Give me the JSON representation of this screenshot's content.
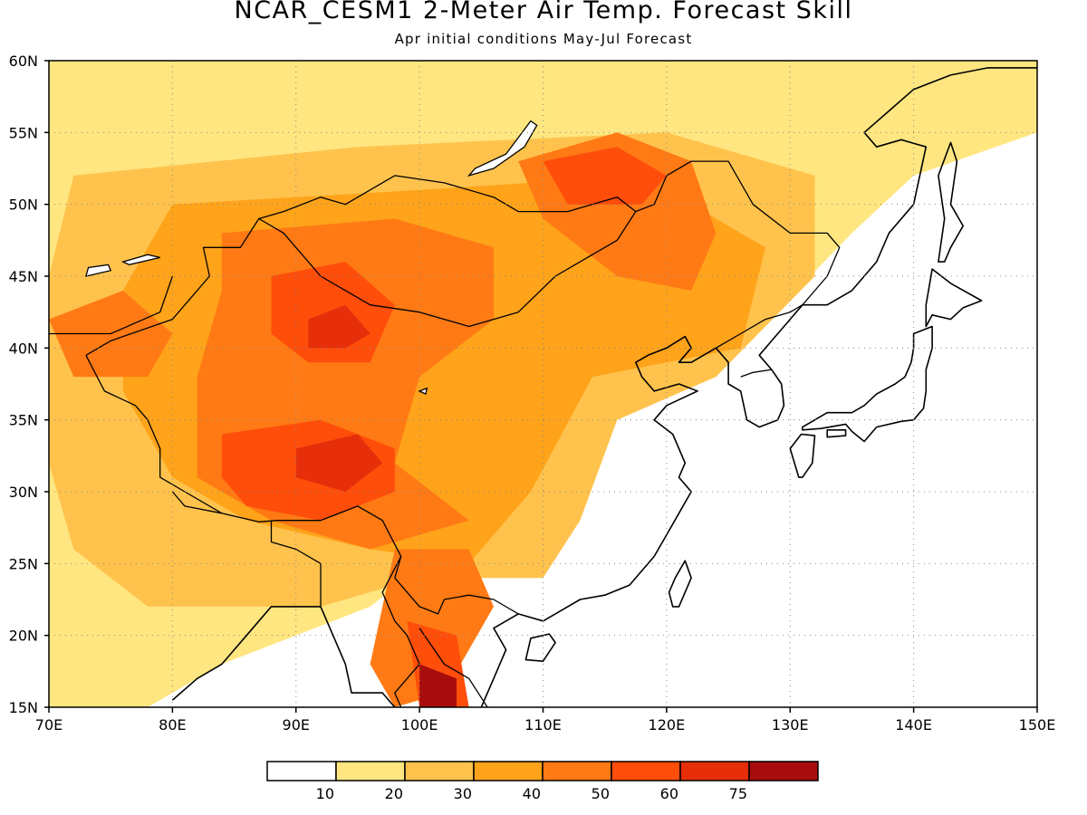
{
  "title": "NCAR_CESM1 2-Meter Air Temp. Forecast Skill",
  "subtitle": "Apr initial conditions  May-Jul Forecast",
  "map": {
    "lon_range": [
      70,
      150
    ],
    "lat_range": [
      15,
      60
    ],
    "lon_ticks": [
      {
        "value": 70,
        "label": "70E"
      },
      {
        "value": 80,
        "label": "80E"
      },
      {
        "value": 90,
        "label": "90E"
      },
      {
        "value": 100,
        "label": "100E"
      },
      {
        "value": 110,
        "label": "110E"
      },
      {
        "value": 120,
        "label": "120E"
      },
      {
        "value": 130,
        "label": "130E"
      },
      {
        "value": 140,
        "label": "140E"
      },
      {
        "value": 150,
        "label": "150E"
      }
    ],
    "lat_ticks": [
      {
        "value": 15,
        "label": "15N"
      },
      {
        "value": 20,
        "label": "20N"
      },
      {
        "value": 25,
        "label": "25N"
      },
      {
        "value": 30,
        "label": "30N"
      },
      {
        "value": 35,
        "label": "35N"
      },
      {
        "value": 40,
        "label": "40N"
      },
      {
        "value": 45,
        "label": "45N"
      },
      {
        "value": 50,
        "label": "50N"
      },
      {
        "value": 55,
        "label": "55N"
      },
      {
        "value": 60,
        "label": "60N"
      }
    ],
    "gridlines": "dotted"
  },
  "colorbar": {
    "colors": [
      "#ffffff",
      "#ffe680",
      "#ffc34d",
      "#ffa31a",
      "#ff7a14",
      "#ff4d0a",
      "#e62e0a",
      "#a80d0d"
    ],
    "labels": [
      "10",
      "20",
      "30",
      "40",
      "50",
      "60",
      "75"
    ]
  },
  "skill_regions": [
    {
      "level": 1,
      "points": [
        [
          70,
          60
        ],
        [
          150,
          60
        ],
        [
          150,
          55
        ],
        [
          140,
          52
        ],
        [
          135,
          48
        ],
        [
          126,
          40
        ],
        [
          118,
          36
        ],
        [
          112,
          35
        ],
        [
          110,
          33
        ],
        [
          102,
          26
        ],
        [
          96,
          22
        ],
        [
          84,
          18
        ],
        [
          76,
          14
        ],
        [
          70,
          15
        ]
      ]
    },
    {
      "level": 2,
      "points": [
        [
          72,
          52
        ],
        [
          95,
          54
        ],
        [
          120,
          55
        ],
        [
          132,
          52
        ],
        [
          132,
          45
        ],
        [
          124,
          38
        ],
        [
          116,
          35
        ],
        [
          113,
          28
        ],
        [
          110,
          24
        ],
        [
          100,
          24
        ],
        [
          92,
          22
        ],
        [
          86,
          22
        ],
        [
          78,
          22
        ],
        [
          72,
          26
        ],
        [
          70,
          32
        ],
        [
          70,
          45
        ]
      ]
    },
    {
      "level": 3,
      "points": [
        [
          80,
          50
        ],
        [
          100,
          51
        ],
        [
          118,
          52
        ],
        [
          128,
          47
        ],
        [
          126,
          40
        ],
        [
          114,
          38
        ],
        [
          109,
          30
        ],
        [
          104,
          25
        ],
        [
          96,
          26
        ],
        [
          86,
          28
        ],
        [
          80,
          31
        ],
        [
          76,
          37
        ],
        [
          76,
          44
        ]
      ]
    },
    {
      "level": 4,
      "points": [
        [
          84,
          48
        ],
        [
          98,
          49
        ],
        [
          106,
          47
        ],
        [
          106,
          42
        ],
        [
          100,
          38
        ],
        [
          98,
          32
        ],
        [
          104,
          28
        ],
        [
          96,
          26
        ],
        [
          88,
          28
        ],
        [
          82,
          31
        ],
        [
          82,
          38
        ],
        [
          84,
          44
        ]
      ]
    },
    {
      "level": 4,
      "points": [
        [
          108,
          53
        ],
        [
          116,
          55
        ],
        [
          122,
          53
        ],
        [
          124,
          48
        ],
        [
          122,
          44
        ],
        [
          116,
          45
        ],
        [
          110,
          49
        ]
      ]
    },
    {
      "level": 4,
      "points": [
        [
          70,
          42
        ],
        [
          76,
          44
        ],
        [
          80,
          41
        ],
        [
          78,
          38
        ],
        [
          72,
          38
        ]
      ]
    },
    {
      "level": 4,
      "points": [
        [
          98,
          26
        ],
        [
          104,
          26
        ],
        [
          106,
          22
        ],
        [
          102,
          16
        ],
        [
          98,
          15
        ],
        [
          96,
          18
        ]
      ]
    },
    {
      "level": 5,
      "points": [
        [
          88,
          45
        ],
        [
          94,
          46
        ],
        [
          98,
          43
        ],
        [
          96,
          39
        ],
        [
          91,
          39
        ],
        [
          88,
          41
        ]
      ]
    },
    {
      "level": 5,
      "points": [
        [
          84,
          34
        ],
        [
          92,
          35
        ],
        [
          98,
          33
        ],
        [
          98,
          30
        ],
        [
          92,
          28
        ],
        [
          86,
          29
        ],
        [
          84,
          31
        ]
      ]
    },
    {
      "level": 5,
      "points": [
        [
          110,
          53
        ],
        [
          116,
          54
        ],
        [
          120,
          52
        ],
        [
          118,
          50
        ],
        [
          112,
          50
        ]
      ]
    },
    {
      "level": 5,
      "points": [
        [
          99,
          21
        ],
        [
          103,
          20
        ],
        [
          104,
          15
        ],
        [
          100,
          15
        ]
      ]
    },
    {
      "level": 6,
      "points": [
        [
          91,
          42
        ],
        [
          94,
          43
        ],
        [
          96,
          41
        ],
        [
          94,
          40
        ],
        [
          91,
          40
        ]
      ]
    },
    {
      "level": 6,
      "points": [
        [
          90,
          33
        ],
        [
          95,
          34
        ],
        [
          97,
          32
        ],
        [
          94,
          30
        ],
        [
          90,
          31
        ]
      ]
    },
    {
      "level": 7,
      "points": [
        [
          100,
          18
        ],
        [
          103,
          17
        ],
        [
          103,
          15
        ],
        [
          100,
          15
        ]
      ]
    }
  ],
  "coastlines": [
    [
      [
        92,
        22
      ],
      [
        90,
        22
      ],
      [
        88,
        22
      ],
      [
        87,
        21
      ],
      [
        86,
        20
      ],
      [
        84,
        18
      ],
      [
        82,
        17
      ],
      [
        80,
        15.5
      ]
    ],
    [
      [
        92,
        22
      ],
      [
        93,
        20
      ],
      [
        94,
        18
      ],
      [
        94.5,
        16
      ],
      [
        97,
        16
      ],
      [
        98,
        15
      ]
    ],
    [
      [
        100,
        15
      ],
      [
        100,
        13.5
      ]
    ],
    [
      [
        105,
        15
      ],
      [
        106,
        17
      ],
      [
        107,
        19
      ],
      [
        106,
        20.5
      ],
      [
        108,
        21.5
      ],
      [
        110,
        21
      ],
      [
        111,
        21.5
      ],
      [
        113,
        22.5
      ],
      [
        115,
        22.8
      ],
      [
        117,
        23.5
      ],
      [
        119,
        25.5
      ],
      [
        120,
        27
      ],
      [
        121,
        28.5
      ],
      [
        122,
        30
      ],
      [
        121,
        31
      ],
      [
        121.5,
        32
      ],
      [
        120.5,
        34
      ],
      [
        119,
        35
      ],
      [
        120,
        36
      ],
      [
        122.5,
        37
      ],
      [
        121,
        37.5
      ],
      [
        119,
        37
      ],
      [
        118,
        38
      ],
      [
        117.5,
        39
      ],
      [
        118.5,
        39.5
      ],
      [
        120,
        40
      ],
      [
        121.5,
        40.8
      ],
      [
        122,
        40
      ],
      [
        121,
        39
      ],
      [
        122,
        39
      ],
      [
        124,
        40
      ],
      [
        125,
        39
      ],
      [
        125,
        37.5
      ],
      [
        126,
        37
      ],
      [
        126.5,
        35
      ],
      [
        127.5,
        34.5
      ],
      [
        129,
        35
      ],
      [
        129.5,
        36
      ],
      [
        129.3,
        37.5
      ],
      [
        128.5,
        38.5
      ],
      [
        127.5,
        39.5
      ],
      [
        128.5,
        40.5
      ],
      [
        130,
        42
      ],
      [
        131,
        43
      ],
      [
        133,
        43
      ],
      [
        135,
        44
      ],
      [
        137,
        46
      ],
      [
        138,
        48
      ],
      [
        140,
        50
      ],
      [
        140.5,
        52
      ],
      [
        141,
        54
      ],
      [
        139,
        54.5
      ],
      [
        137,
        54
      ],
      [
        136,
        55
      ],
      [
        138,
        56.5
      ],
      [
        140,
        58
      ],
      [
        143,
        59
      ],
      [
        146,
        59.5
      ],
      [
        150,
        59.5
      ]
    ]
  ],
  "islands": [
    [
      [
        120.5,
        22
      ],
      [
        121,
        22
      ],
      [
        122,
        24
      ],
      [
        121.5,
        25.2
      ],
      [
        120.7,
        24
      ],
      [
        120.2,
        23
      ]
    ],
    [
      [
        108.6,
        18.3
      ],
      [
        110,
        18.2
      ],
      [
        111,
        19.5
      ],
      [
        110.5,
        20.1
      ],
      [
        109,
        19.8
      ]
    ],
    [
      [
        141,
        41.5
      ],
      [
        141,
        43
      ],
      [
        141.5,
        45.5
      ],
      [
        143,
        44.5
      ],
      [
        145.5,
        43.3
      ],
      [
        144,
        42.8
      ],
      [
        143,
        42
      ],
      [
        141.5,
        42.3
      ]
    ],
    [
      [
        130.7,
        31
      ],
      [
        130,
        33
      ],
      [
        130.9,
        34
      ],
      [
        132,
        33.9
      ],
      [
        131.8,
        32
      ],
      [
        131,
        31
      ]
    ],
    [
      [
        133,
        33.8
      ],
      [
        134.5,
        33.9
      ],
      [
        134.5,
        34.3
      ],
      [
        133,
        34.3
      ]
    ],
    [
      [
        131,
        34.3
      ],
      [
        132.5,
        34.4
      ],
      [
        134.5,
        34.7
      ],
      [
        135,
        34.2
      ],
      [
        136,
        33.5
      ],
      [
        137,
        34.5
      ],
      [
        139,
        34.9
      ],
      [
        140,
        35
      ],
      [
        140.8,
        35.8
      ],
      [
        141,
        37
      ],
      [
        141,
        38.5
      ],
      [
        141.5,
        40
      ],
      [
        141.5,
        41.5
      ],
      [
        140,
        41
      ],
      [
        140,
        40
      ],
      [
        139.8,
        39
      ],
      [
        139.3,
        38
      ],
      [
        138.5,
        37.5
      ],
      [
        137,
        36.8
      ],
      [
        136,
        36
      ],
      [
        135,
        35.5
      ],
      [
        133,
        35.5
      ],
      [
        132,
        35
      ],
      [
        131,
        34.5
      ]
    ],
    [
      [
        142,
        46
      ],
      [
        142.5,
        49
      ],
      [
        142,
        52
      ],
      [
        143,
        54.3
      ],
      [
        143.5,
        53
      ],
      [
        143,
        50
      ],
      [
        144,
        48.5
      ],
      [
        143,
        47
      ],
      [
        142.5,
        46
      ]
    ]
  ],
  "borders": [
    [
      [
        73,
        39.5
      ],
      [
        75,
        40.5
      ],
      [
        80,
        42
      ],
      [
        83,
        45
      ],
      [
        82.5,
        47
      ],
      [
        85.5,
        47
      ],
      [
        87,
        49
      ],
      [
        89,
        49.5
      ],
      [
        92,
        50.5
      ],
      [
        94,
        50
      ],
      [
        98,
        52
      ],
      [
        102,
        51.5
      ],
      [
        106,
        50.5
      ],
      [
        108,
        49.5
      ],
      [
        112,
        49.5
      ],
      [
        116,
        50.5
      ],
      [
        117.5,
        49.5
      ],
      [
        116,
        47.5
      ],
      [
        113,
        46
      ],
      [
        111,
        45
      ],
      [
        108,
        42.5
      ],
      [
        104,
        41.5
      ],
      [
        100,
        42.5
      ],
      [
        96,
        43
      ],
      [
        92,
        45
      ],
      [
        89,
        48
      ],
      [
        87,
        49
      ]
    ],
    [
      [
        73,
        39.5
      ],
      [
        74.5,
        37
      ],
      [
        77,
        36
      ],
      [
        78,
        35
      ],
      [
        79,
        33
      ],
      [
        79,
        31
      ],
      [
        81,
        30
      ],
      [
        84,
        28.5
      ],
      [
        87,
        27.9
      ],
      [
        88.5,
        28
      ],
      [
        92,
        28
      ],
      [
        95,
        29
      ],
      [
        97,
        28
      ],
      [
        98.5,
        25.5
      ],
      [
        98,
        24
      ],
      [
        100,
        22
      ],
      [
        101.5,
        21.5
      ],
      [
        102,
        22.5
      ],
      [
        104,
        22.8
      ],
      [
        106,
        22.5
      ],
      [
        108,
        21.5
      ]
    ],
    [
      [
        117.5,
        49.5
      ],
      [
        119,
        50
      ],
      [
        120,
        52
      ],
      [
        122,
        53
      ],
      [
        125,
        53
      ],
      [
        127,
        50
      ],
      [
        130,
        48
      ],
      [
        133,
        48
      ],
      [
        134,
        47
      ],
      [
        133,
        45
      ],
      [
        131,
        43
      ],
      [
        130,
        42.5
      ],
      [
        128,
        42
      ],
      [
        126,
        41
      ],
      [
        124,
        40
      ]
    ],
    [
      [
        70,
        41
      ],
      [
        75,
        41
      ],
      [
        79,
        42.5
      ],
      [
        80,
        45
      ]
    ],
    [
      [
        80,
        30
      ],
      [
        81,
        29
      ],
      [
        84,
        28.5
      ]
    ],
    [
      [
        92,
        22
      ],
      [
        92,
        25
      ],
      [
        90,
        26
      ],
      [
        88,
        26.5
      ],
      [
        88,
        28
      ]
    ],
    [
      [
        98.5,
        25.5
      ],
      [
        97,
        23
      ],
      [
        98,
        21
      ],
      [
        99,
        20
      ],
      [
        100,
        18
      ],
      [
        98,
        16
      ],
      [
        98.5,
        15
      ]
    ],
    [
      [
        100,
        20.5
      ],
      [
        102,
        18
      ],
      [
        104,
        17
      ],
      [
        105.5,
        15
      ]
    ],
    [
      [
        126,
        38
      ],
      [
        127,
        38.3
      ],
      [
        128.5,
        38.5
      ]
    ]
  ],
  "lakes": [
    [
      [
        104,
        52
      ],
      [
        106,
        52.5
      ],
      [
        108.5,
        54
      ],
      [
        109.5,
        55.5
      ],
      [
        109,
        55.8
      ],
      [
        107,
        53.5
      ],
      [
        104.5,
        52.5
      ]
    ],
    [
      [
        76,
        46
      ],
      [
        78,
        46.5
      ],
      [
        79,
        46.3
      ],
      [
        76.5,
        45.8
      ]
    ],
    [
      [
        73,
        45
      ],
      [
        75,
        45.4
      ],
      [
        74.8,
        45.8
      ],
      [
        73.2,
        45.6
      ]
    ],
    [
      [
        100,
        37
      ],
      [
        100.6,
        37.2
      ],
      [
        100.5,
        36.8
      ]
    ]
  ]
}
